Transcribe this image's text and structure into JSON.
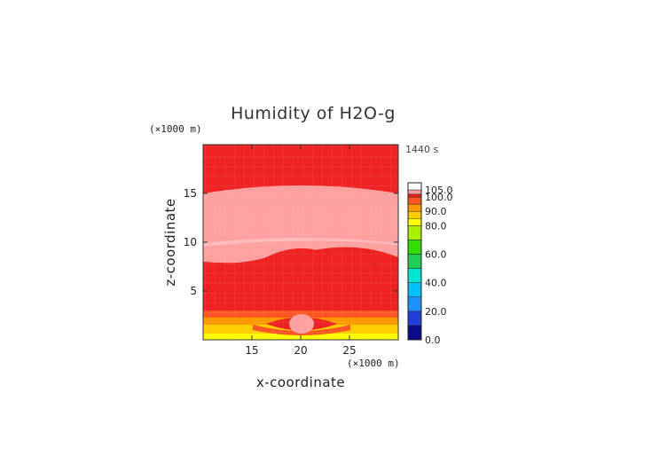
{
  "chart_data": {
    "type": "heatmap",
    "title": "Humidity of H2O-g",
    "time_label": "1440 s",
    "xlabel": "x-coordinate",
    "ylabel": "z-coordinate",
    "x_unit": "(×1000 m)",
    "y_unit": "(×1000 m)",
    "xlim": [
      10,
      30
    ],
    "ylim": [
      0,
      20
    ],
    "x_ticks": [
      15,
      20,
      25
    ],
    "y_ticks": [
      5,
      10,
      15
    ],
    "grid": false,
    "colorbar": {
      "placement": "right",
      "labels": [
        "105.0",
        "100.0",
        "90.0",
        "80.0",
        "60.0",
        "40.0",
        "20.0",
        "0.0"
      ],
      "levels": [
        {
          "from": 0,
          "to": 10,
          "color": "#0b0b8a"
        },
        {
          "from": 10,
          "to": 20,
          "color": "#1f3fd6"
        },
        {
          "from": 20,
          "to": 30,
          "color": "#1e90ff"
        },
        {
          "from": 30,
          "to": 40,
          "color": "#00bfff"
        },
        {
          "from": 40,
          "to": 50,
          "color": "#00e5d0"
        },
        {
          "from": 50,
          "to": 60,
          "color": "#22cc55"
        },
        {
          "from": 60,
          "to": 70,
          "color": "#33dd00"
        },
        {
          "from": 70,
          "to": 80,
          "color": "#aaee00"
        },
        {
          "from": 80,
          "to": 85,
          "color": "#ffff00"
        },
        {
          "from": 85,
          "to": 90,
          "color": "#ffcc00"
        },
        {
          "from": 90,
          "to": 95,
          "color": "#ff9900"
        },
        {
          "from": 95,
          "to": 100,
          "color": "#ff5522"
        },
        {
          "from": 100,
          "to": 102,
          "color": "#ee2222"
        },
        {
          "from": 102,
          "to": 105,
          "color": "#ffa0a0"
        },
        {
          "from": 105,
          "to": 110,
          "color": "#ffffff"
        }
      ]
    },
    "field_regions": [
      {
        "region": "background",
        "value": 101,
        "color": "#ee2222"
      },
      {
        "region": "upper moist band",
        "z_range": [
          8,
          15.5
        ],
        "value": 104,
        "color": "#ffa0a0"
      },
      {
        "region": "central dome",
        "x": 20,
        "z_top": 9.3,
        "value": 101,
        "color": "#ee2222"
      },
      {
        "region": "surface layer",
        "z_range": [
          0,
          3
        ],
        "values": [
          82,
          87,
          92,
          97
        ],
        "colors": [
          "#ffff00",
          "#ffcc00",
          "#ff9900",
          "#ff5522"
        ]
      },
      {
        "region": "surface bubble",
        "x": 20,
        "z_range": [
          0.7,
          2.8
        ],
        "value": 104,
        "color": "#ffa0a0"
      }
    ]
  }
}
